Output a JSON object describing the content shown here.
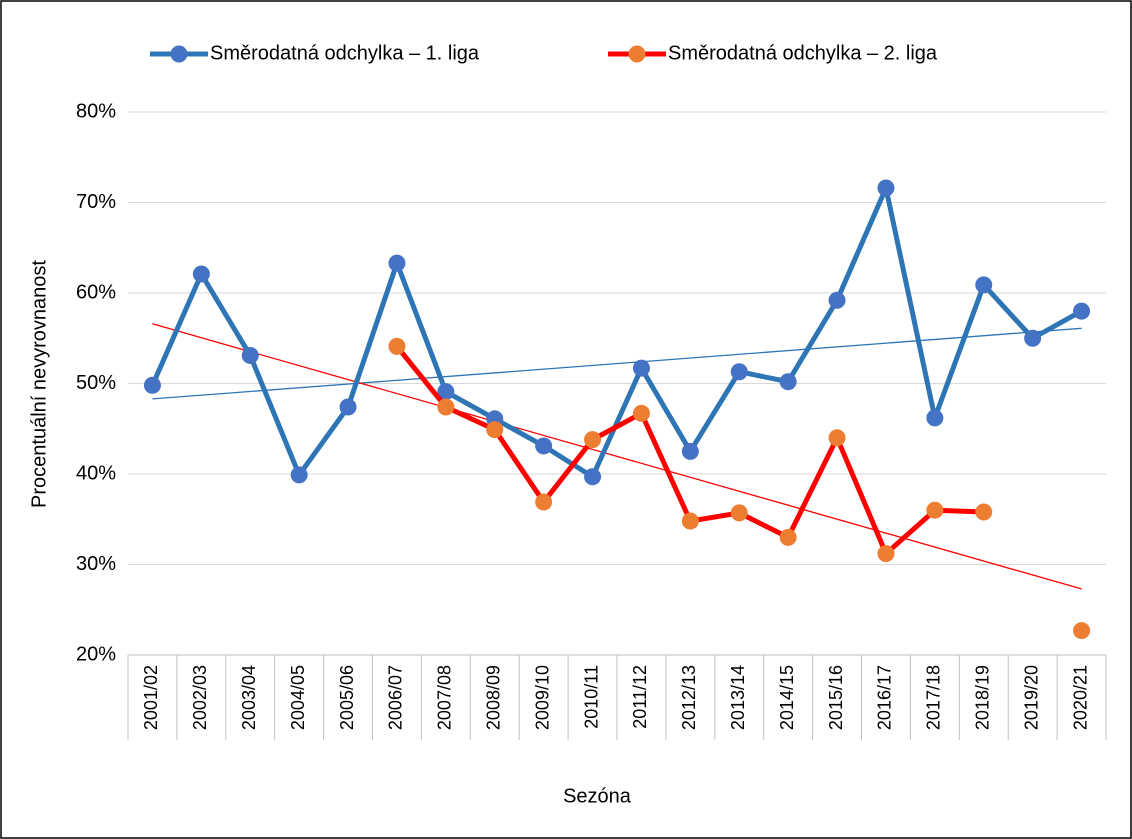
{
  "chart_data": {
    "type": "line",
    "x_label": "Sezóna",
    "y_label": "Procentuální nevyrovnanost",
    "categories": [
      "2001/02",
      "2002/03",
      "2003/04",
      "2004/05",
      "2005/06",
      "2006/07",
      "2007/08",
      "2008/09",
      "2009/10",
      "2010/11",
      "2011/12",
      "2012/13",
      "2013/14",
      "2014/15",
      "2015/16",
      "2016/17",
      "2017/18",
      "2018/19",
      "2019/20",
      "2020/21"
    ],
    "series": [
      {
        "name": "Směrodatná odchylka – 1. liga",
        "color": "#2e75b6",
        "marker_color": "#4472c4",
        "values": [
          49.8,
          62.1,
          53.1,
          39.9,
          47.4,
          63.3,
          49.1,
          46.1,
          43.1,
          39.7,
          51.7,
          42.5,
          51.3,
          50.2,
          59.2,
          71.6,
          46.2,
          60.9,
          55.0,
          58.0
        ]
      },
      {
        "name": "Směrodatná odchylka – 2. liga",
        "color": "#ff0000",
        "marker_color": "#ed7d31",
        "values": [
          null,
          null,
          null,
          null,
          null,
          54.1,
          47.4,
          44.9,
          36.9,
          43.8,
          46.7,
          34.8,
          35.7,
          33.0,
          44.0,
          31.2,
          36.0,
          35.8,
          null,
          22.7
        ]
      }
    ],
    "trendlines": [
      {
        "color": "#2e75b6",
        "values": [
          48.3,
          56.1
        ]
      },
      {
        "color": "#ff0000",
        "values": [
          56.6,
          27.3
        ]
      }
    ],
    "ylim": [
      20,
      80
    ],
    "yticks": [
      {
        "value": 20,
        "label": "20%"
      },
      {
        "value": 30,
        "label": "30%"
      },
      {
        "value": 40,
        "label": "40%"
      },
      {
        "value": 50,
        "label": "50%"
      },
      {
        "value": 60,
        "label": "60%"
      },
      {
        "value": 70,
        "label": "70%"
      },
      {
        "value": 80,
        "label": "80%"
      }
    ],
    "grid": true,
    "legend": "top"
  }
}
